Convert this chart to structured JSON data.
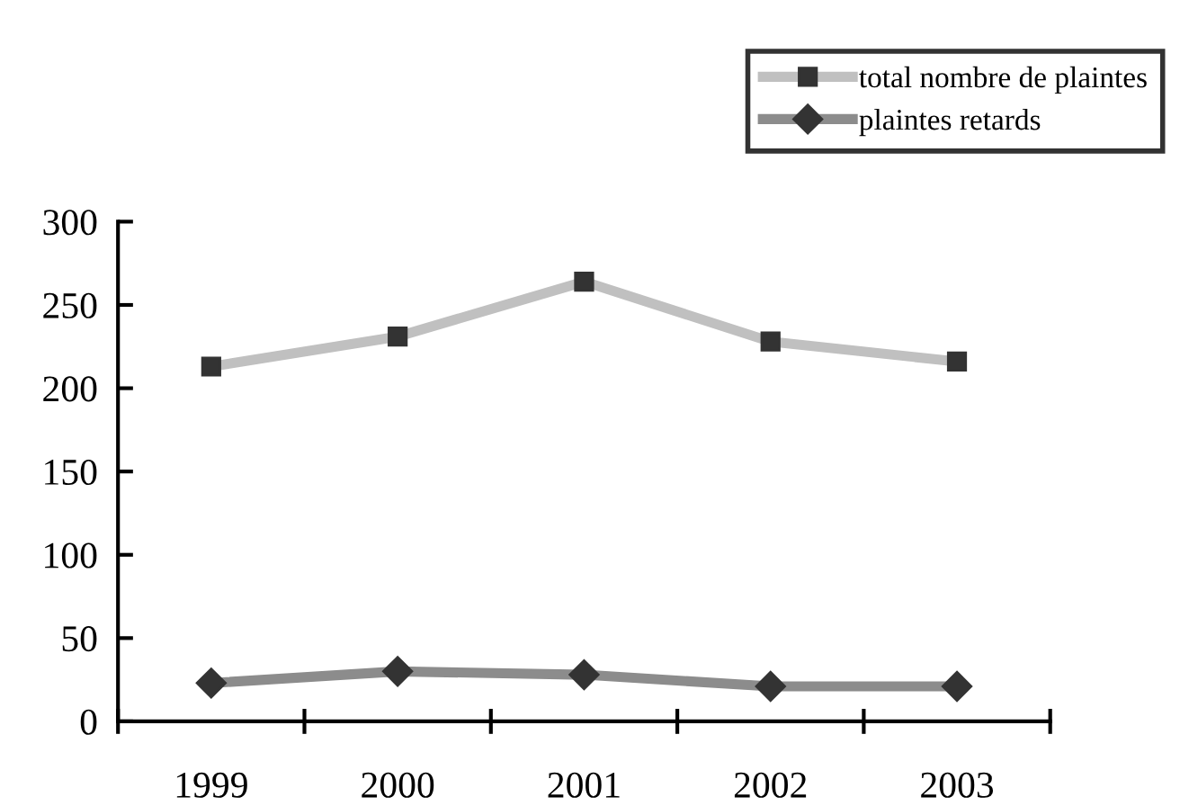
{
  "chart_data": {
    "type": "line",
    "categories": [
      "1999",
      "2000",
      "2001",
      "2002",
      "2003"
    ],
    "series": [
      {
        "name": "total nombre de plaintes",
        "color": "#c0c0c0",
        "marker": "square",
        "values": [
          213,
          231,
          264,
          228,
          216
        ]
      },
      {
        "name": "plaintes retards",
        "color": "#8c8c8c",
        "marker": "diamond",
        "values": [
          23,
          30,
          28,
          21,
          21
        ]
      }
    ],
    "ylim": [
      0,
      300
    ],
    "yticks": [
      0,
      50,
      100,
      150,
      200,
      250,
      300
    ],
    "grid": false,
    "legend": "top right",
    "line_style": "solid"
  }
}
